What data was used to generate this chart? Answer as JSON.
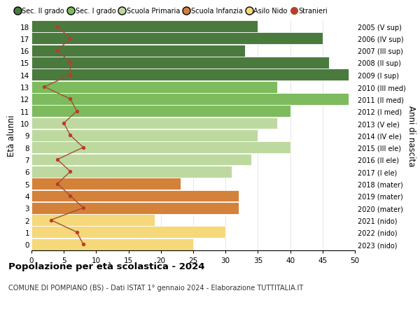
{
  "ages": [
    18,
    17,
    16,
    15,
    14,
    13,
    12,
    11,
    10,
    9,
    8,
    7,
    6,
    5,
    4,
    3,
    2,
    1,
    0
  ],
  "years": [
    "2005 (V sup)",
    "2006 (IV sup)",
    "2007 (III sup)",
    "2008 (II sup)",
    "2009 (I sup)",
    "2010 (III med)",
    "2011 (II med)",
    "2012 (I med)",
    "2013 (V ele)",
    "2014 (IV ele)",
    "2015 (III ele)",
    "2016 (II ele)",
    "2017 (I ele)",
    "2018 (mater)",
    "2019 (mater)",
    "2020 (mater)",
    "2021 (nido)",
    "2022 (nido)",
    "2023 (nido)"
  ],
  "bar_values": [
    35,
    45,
    33,
    46,
    49,
    38,
    49,
    40,
    38,
    35,
    40,
    34,
    31,
    23,
    32,
    32,
    19,
    30,
    25
  ],
  "bar_colors": [
    "#4a7a3d",
    "#4a7a3d",
    "#4a7a3d",
    "#4a7a3d",
    "#4a7a3d",
    "#7dbb5e",
    "#7dbb5e",
    "#7dbb5e",
    "#bdd9a0",
    "#bdd9a0",
    "#bdd9a0",
    "#bdd9a0",
    "#bdd9a0",
    "#d4813a",
    "#d4813a",
    "#d4813a",
    "#f5d87a",
    "#f5d87a",
    "#f5d87a"
  ],
  "stranieri": [
    4,
    6,
    4,
    6,
    6,
    2,
    6,
    7,
    5,
    6,
    8,
    4,
    6,
    4,
    6,
    8,
    3,
    7,
    8
  ],
  "legend_labels": [
    "Sec. II grado",
    "Sec. I grado",
    "Scuola Primaria",
    "Scuola Infanzia",
    "Asilo Nido",
    "Stranieri"
  ],
  "legend_colors": [
    "#4a7a3d",
    "#7dbb5e",
    "#bdd9a0",
    "#d4813a",
    "#f5d87a",
    "#c0392b"
  ],
  "title": "Popolazione per età scolastica - 2024",
  "subtitle": "COMUNE DI POMPIANO (BS) - Dati ISTAT 1° gennaio 2024 - Elaborazione TUTTITALIA.IT",
  "ylabel": "Età alunni",
  "right_label": "Anni di nascita",
  "xlim": [
    0,
    50
  ],
  "xticks": [
    0,
    5,
    10,
    15,
    20,
    25,
    30,
    35,
    40,
    45,
    50
  ],
  "background_color": "#ffffff",
  "grid_color": "#cccccc",
  "stranieri_color": "#c0392b",
  "stranieri_line_color": "#a05030"
}
